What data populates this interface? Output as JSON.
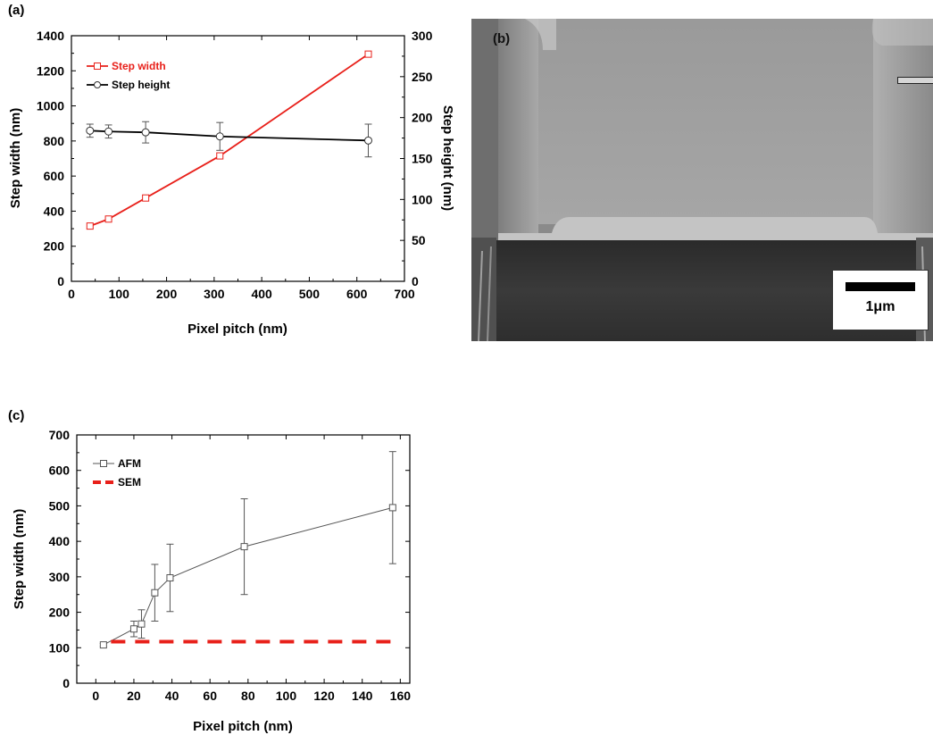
{
  "panels": {
    "a": {
      "label": "(a)"
    },
    "b": {
      "label": "(b)",
      "scale_bar": "1μm"
    },
    "c": {
      "label": "(c)"
    }
  },
  "colors": {
    "red": "#e8201a",
    "black": "#000000",
    "gray": "#555555"
  },
  "chart_data": [
    {
      "panel": "(a)",
      "type": "line",
      "xlabel": "Pixel pitch (nm)",
      "ylabel": "Step width (nm)",
      "y2label": "Step height (nm)",
      "xlim": [
        0,
        700
      ],
      "ylim": [
        0,
        1400
      ],
      "y2lim": [
        0,
        300
      ],
      "xticks": [
        0,
        100,
        200,
        300,
        400,
        500,
        600,
        700
      ],
      "yticks": [
        0,
        200,
        400,
        600,
        800,
        1000,
        1200,
        1400
      ],
      "y2ticks": [
        0,
        50,
        100,
        150,
        200,
        250,
        300
      ],
      "legend_position": "top-left",
      "series": [
        {
          "name": "Step width",
          "axis": "left",
          "marker": "square",
          "color": "#e8201a",
          "x": [
            39,
            78,
            156,
            312,
            624
          ],
          "y": [
            315,
            355,
            475,
            715,
            1295
          ]
        },
        {
          "name": "Step height",
          "axis": "right",
          "marker": "circle",
          "color": "#000000",
          "x": [
            39,
            78,
            156,
            312,
            624
          ],
          "y": [
            184,
            183,
            182,
            177,
            172
          ],
          "error": [
            8,
            8,
            13,
            17,
            20
          ]
        }
      ]
    },
    {
      "panel": "(c)",
      "type": "line",
      "xlabel": "Pixel pitch (nm)",
      "ylabel": "Step width (nm)",
      "xlim": [
        -10,
        165
      ],
      "ylim": [
        0,
        700
      ],
      "xticks": [
        0,
        20,
        40,
        60,
        80,
        100,
        120,
        140,
        160
      ],
      "yticks": [
        0,
        100,
        200,
        300,
        400,
        500,
        600,
        700
      ],
      "legend_position": "top-left",
      "series": [
        {
          "name": "AFM",
          "marker": "square",
          "color": "#555555",
          "x": [
            4,
            20,
            24,
            31,
            39,
            78,
            156
          ],
          "y": [
            108,
            153,
            167,
            255,
            297,
            385,
            495
          ],
          "error": [
            4,
            22,
            40,
            80,
            95,
            135,
            158
          ]
        },
        {
          "name": "SEM",
          "style": "dashed",
          "color": "#e8201a",
          "x": [
            8,
            156
          ],
          "y": [
            117,
            117
          ]
        }
      ]
    }
  ]
}
